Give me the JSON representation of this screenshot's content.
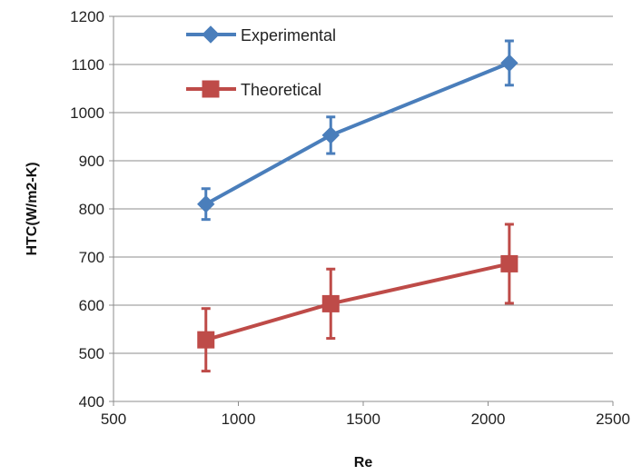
{
  "chart_data": {
    "type": "line",
    "xlabel": "Re",
    "ylabel": "HTC(W/m2-K)",
    "xlim": [
      500,
      2500
    ],
    "ylim": [
      400,
      1200
    ],
    "xticks": [
      500,
      1000,
      1500,
      2000,
      2500
    ],
    "yticks": [
      400,
      500,
      600,
      700,
      800,
      900,
      1000,
      1100,
      1200
    ],
    "grid": "horizontal",
    "legend": "top-left",
    "series": [
      {
        "name": "Experimental",
        "color": "#4a7ebb",
        "marker": "diamond",
        "x": [
          870,
          1370,
          2085
        ],
        "y": [
          810,
          953,
          1103
        ],
        "error": [
          32,
          38,
          46
        ]
      },
      {
        "name": "Theoretical",
        "color": "#be4b48",
        "marker": "square",
        "x": [
          870,
          1370,
          2085
        ],
        "y": [
          528,
          603,
          686
        ],
        "error": [
          65,
          72,
          82
        ]
      }
    ]
  }
}
